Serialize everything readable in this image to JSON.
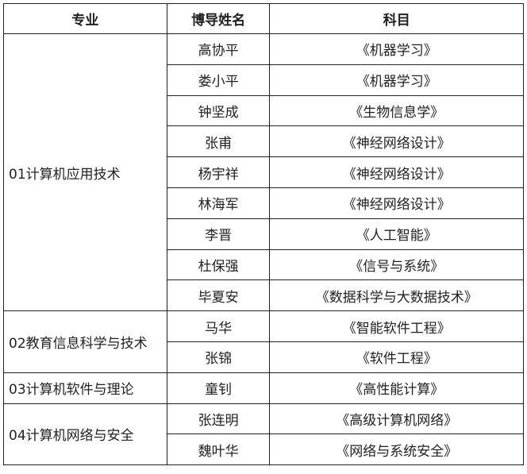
{
  "headers": {
    "major": "专业",
    "advisor": "博导姓名",
    "subject": "科目"
  },
  "groups": [
    {
      "major": "01计算机应用技术",
      "rows": [
        {
          "advisor": "高协平",
          "subject": "《机器学习》"
        },
        {
          "advisor": "娄小平",
          "subject": "《机器学习》"
        },
        {
          "advisor": "钟坚成",
          "subject": "《生物信息学》"
        },
        {
          "advisor": "张甫",
          "subject": "《神经网络设计》"
        },
        {
          "advisor": "杨宇祥",
          "subject": "《神经网络设计》"
        },
        {
          "advisor": "林海军",
          "subject": "《神经网络设计》"
        },
        {
          "advisor": "李晋",
          "subject": "《人工智能》"
        },
        {
          "advisor": "杜保强",
          "subject": "《信号与系统》"
        },
        {
          "advisor": "毕夏安",
          "subject": "《数据科学与大数据技术》"
        }
      ]
    },
    {
      "major": "02教育信息科学与技术",
      "rows": [
        {
          "advisor": "马华",
          "subject": "《智能软件工程》"
        },
        {
          "advisor": "张锦",
          "subject": "《软件工程》"
        }
      ]
    },
    {
      "major": "03计算机软件与理论",
      "rows": [
        {
          "advisor": "童钊",
          "subject": "《高性能计算》"
        }
      ]
    },
    {
      "major": "04计算机网络与安全",
      "rows": [
        {
          "advisor": "张连明",
          "subject": "《高级计算机网络》"
        },
        {
          "advisor": "魏叶华",
          "subject": "《网络与系统安全》"
        }
      ]
    }
  ]
}
